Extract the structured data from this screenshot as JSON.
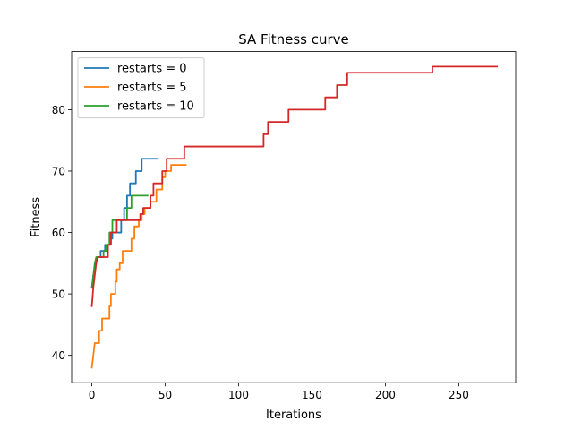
{
  "chart_data": {
    "type": "line",
    "title": "SA Fitness curve",
    "xlabel": "Iterations",
    "ylabel": "Fitness",
    "xlim": [
      -13.75,
      288.75
    ],
    "ylim": [
      35.55,
      89.45
    ],
    "xticks": [
      0,
      50,
      100,
      150,
      200,
      250
    ],
    "yticks": [
      40,
      50,
      60,
      70,
      80
    ],
    "grid": false,
    "legend_position": "upper-left",
    "series": [
      {
        "name": "restarts = 0",
        "color": "#1f77b4",
        "points": [
          [
            0,
            51
          ],
          [
            1,
            53
          ],
          [
            2,
            54
          ],
          [
            3,
            55
          ],
          [
            4,
            56
          ],
          [
            6,
            56
          ],
          [
            6,
            57
          ],
          [
            9,
            57
          ],
          [
            9,
            58
          ],
          [
            13,
            58
          ],
          [
            13,
            59
          ],
          [
            14,
            59
          ],
          [
            14,
            60
          ],
          [
            20,
            60
          ],
          [
            20,
            62
          ],
          [
            22,
            62
          ],
          [
            22,
            64
          ],
          [
            24,
            64
          ],
          [
            24,
            66
          ],
          [
            26,
            66
          ],
          [
            26,
            68
          ],
          [
            30,
            68
          ],
          [
            30,
            70
          ],
          [
            34,
            70
          ],
          [
            34,
            72
          ],
          [
            45,
            72
          ]
        ]
      },
      {
        "name": "restarts = 5",
        "color": "#ff7f0e",
        "points": [
          [
            0,
            38
          ],
          [
            1,
            40
          ],
          [
            2,
            42
          ],
          [
            5,
            42
          ],
          [
            5,
            44
          ],
          [
            7,
            44
          ],
          [
            7,
            46
          ],
          [
            12,
            46
          ],
          [
            12,
            48
          ],
          [
            13,
            48
          ],
          [
            13,
            50
          ],
          [
            16,
            50
          ],
          [
            16,
            52
          ],
          [
            17,
            52
          ],
          [
            17,
            54
          ],
          [
            19,
            54
          ],
          [
            19,
            55
          ],
          [
            21,
            55
          ],
          [
            21,
            57
          ],
          [
            27,
            57
          ],
          [
            27,
            59
          ],
          [
            29,
            59
          ],
          [
            29,
            61
          ],
          [
            32,
            61
          ],
          [
            32,
            62
          ],
          [
            34,
            62
          ],
          [
            34,
            63
          ],
          [
            36,
            63
          ],
          [
            36,
            64
          ],
          [
            40,
            64
          ],
          [
            40,
            65
          ],
          [
            44,
            65
          ],
          [
            44,
            67
          ],
          [
            48,
            67
          ],
          [
            48,
            69
          ],
          [
            50,
            69
          ],
          [
            50,
            70
          ],
          [
            54,
            70
          ],
          [
            54,
            71
          ],
          [
            64,
            71
          ]
        ]
      },
      {
        "name": "restarts = 10",
        "color": "#2ca02c",
        "points": [
          [
            0,
            51
          ],
          [
            1,
            53
          ],
          [
            2,
            55
          ],
          [
            3,
            56
          ],
          [
            8,
            56
          ],
          [
            8,
            57
          ],
          [
            10,
            57
          ],
          [
            10,
            58
          ],
          [
            12,
            58
          ],
          [
            12,
            60
          ],
          [
            14,
            60
          ],
          [
            14,
            62
          ],
          [
            24,
            62
          ],
          [
            24,
            64
          ],
          [
            27,
            64
          ],
          [
            27,
            66
          ],
          [
            38,
            66
          ]
        ]
      },
      {
        "name": "",
        "color": "#d62728",
        "points": [
          [
            0,
            48
          ],
          [
            1,
            51
          ],
          [
            2,
            53
          ],
          [
            3,
            55
          ],
          [
            4,
            56
          ],
          [
            11,
            56
          ],
          [
            11,
            58
          ],
          [
            13,
            58
          ],
          [
            13,
            60
          ],
          [
            17,
            60
          ],
          [
            17,
            62
          ],
          [
            33,
            62
          ],
          [
            33,
            63
          ],
          [
            35,
            63
          ],
          [
            35,
            64
          ],
          [
            40,
            64
          ],
          [
            40,
            66
          ],
          [
            42,
            66
          ],
          [
            42,
            68
          ],
          [
            48,
            68
          ],
          [
            48,
            70
          ],
          [
            51,
            70
          ],
          [
            51,
            72
          ],
          [
            63,
            72
          ],
          [
            63,
            74
          ],
          [
            117,
            74
          ],
          [
            117,
            76
          ],
          [
            120,
            76
          ],
          [
            120,
            78
          ],
          [
            134,
            78
          ],
          [
            134,
            80
          ],
          [
            159,
            80
          ],
          [
            159,
            82
          ],
          [
            167,
            82
          ],
          [
            167,
            84
          ],
          [
            174,
            84
          ],
          [
            174,
            86
          ],
          [
            232,
            86
          ],
          [
            232,
            87
          ],
          [
            276,
            87
          ]
        ]
      }
    ]
  }
}
